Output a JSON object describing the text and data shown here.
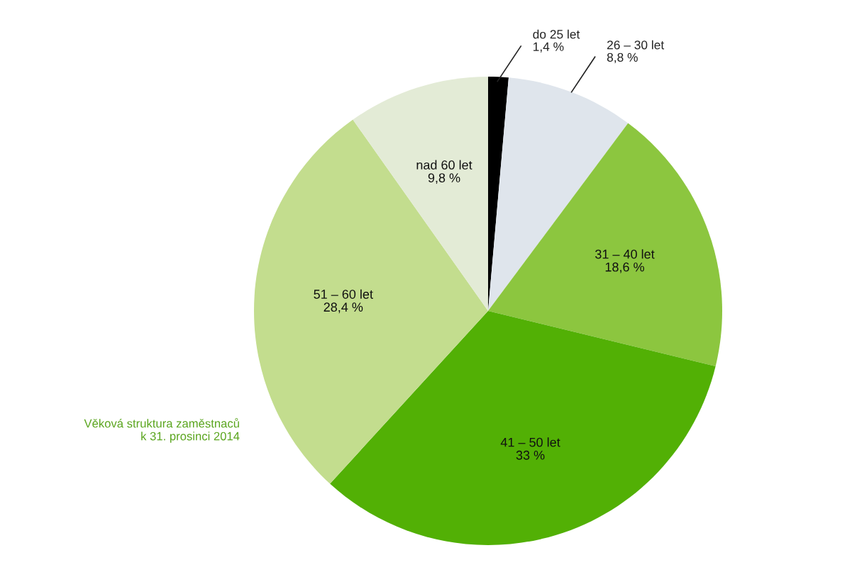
{
  "chart_data": {
    "type": "pie",
    "title": "Věková struktura zaměstnaců\nk 31. prosinci 2014",
    "categories": [
      "do 25 let",
      "26 – 30 let",
      "31 – 40 let",
      "41 – 50 let",
      "51 – 60 let",
      "nad 60 let"
    ],
    "values": [
      1.4,
      8.8,
      18.6,
      33,
      28.4,
      9.8
    ],
    "value_labels": [
      "1,4 %",
      "8,8 %",
      "18,6 %",
      "33 %",
      "28,4 %",
      "9,8 %"
    ],
    "colors": [
      "#000000",
      "#dfe5ec",
      "#8cc63f",
      "#52b005",
      "#c3dd8e",
      "#e3ebd6"
    ],
    "legend": false
  }
}
